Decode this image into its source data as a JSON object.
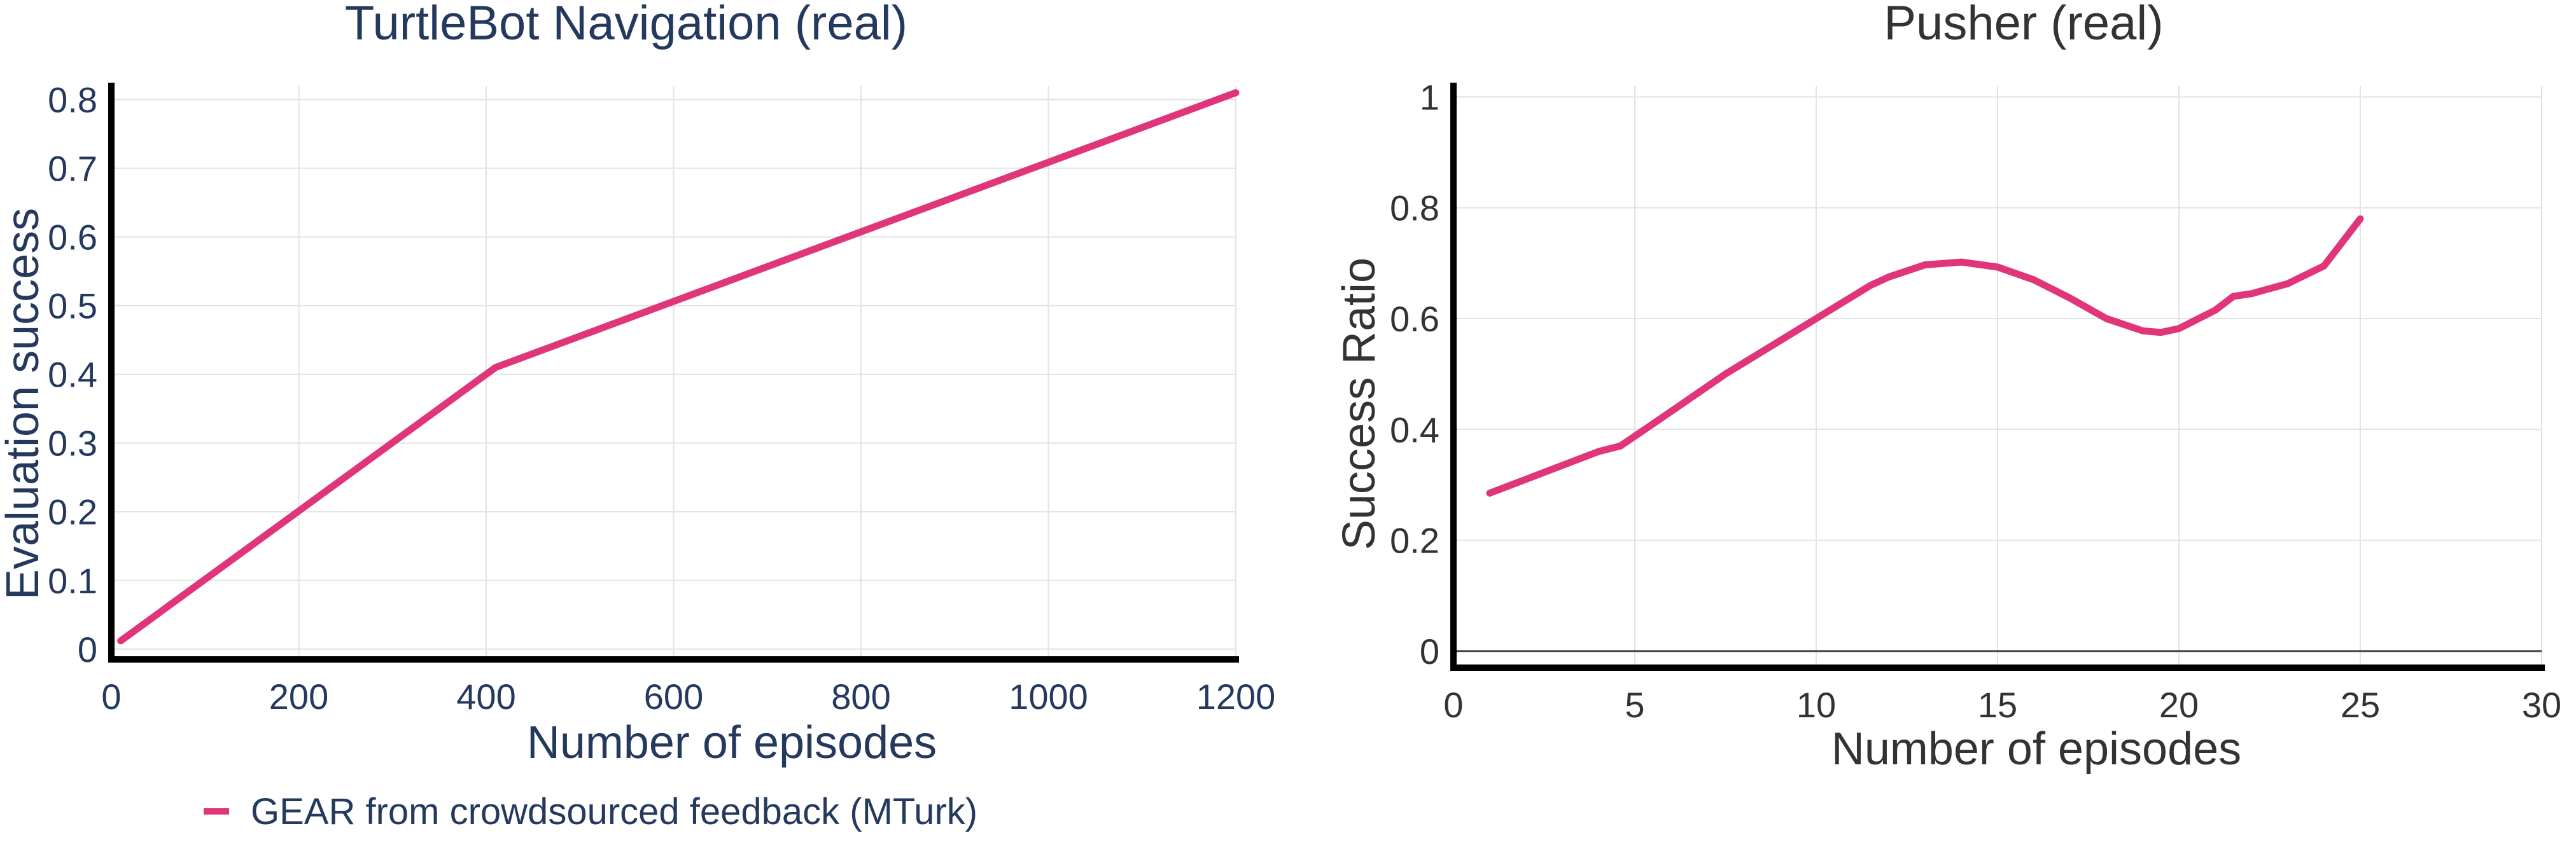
{
  "colors": {
    "series": "#e0357a",
    "left_text": "#25395f",
    "right_text": "#333333"
  },
  "legend": {
    "label": "GEAR from crowdsourced feedback (MTurk)"
  },
  "chart_data": [
    {
      "type": "line",
      "title": "TurtleBot Navigation (real)",
      "xlabel": "Number of episodes",
      "ylabel": "Evaluation success",
      "xlim": [
        0,
        1200
      ],
      "ylim": [
        -0.015,
        0.82
      ],
      "xticks": [
        0,
        200,
        400,
        600,
        800,
        1000,
        1200
      ],
      "xtick_labels": [
        "0",
        "200",
        "400",
        "600",
        "800",
        "1000",
        "1200"
      ],
      "yticks": [
        0,
        0.1,
        0.2,
        0.3,
        0.4,
        0.5,
        0.6,
        0.7,
        0.8
      ],
      "ytick_labels": [
        "0",
        "0.1",
        "0.2",
        "0.3",
        "0.4",
        "0.5",
        "0.6",
        "0.7",
        "0.8"
      ],
      "grid": true,
      "series": [
        {
          "name": "GEAR from crowdsourced feedback (MTurk)",
          "x": [
            10,
            410,
            1200
          ],
          "y": [
            0.012,
            0.41,
            0.81
          ]
        }
      ]
    },
    {
      "type": "line",
      "title": "Pusher (real)",
      "xlabel": "Number of episodes",
      "ylabel": "Success Ratio",
      "xlim": [
        0,
        30
      ],
      "ylim": [
        -0.03,
        1.02
      ],
      "xticks": [
        0,
        5,
        10,
        15,
        20,
        25,
        30
      ],
      "xtick_labels": [
        "0",
        "5",
        "10",
        "15",
        "20",
        "25",
        "30"
      ],
      "yticks": [
        0,
        0.2,
        0.4,
        0.6,
        0.8,
        1
      ],
      "ytick_labels": [
        "0",
        "0.2",
        "0.4",
        "0.6",
        "0.8",
        "1"
      ],
      "grid": true,
      "series": [
        {
          "name": "GEAR from crowdsourced feedback (MTurk)",
          "x": [
            1,
            2,
            3,
            4,
            4.6,
            5.5,
            6.5,
            7.5,
            8.5,
            9.5,
            10.5,
            11.5,
            12,
            13,
            14,
            15,
            16,
            17,
            18,
            19,
            19.5,
            20,
            21,
            21.5,
            22,
            23,
            24,
            25
          ],
          "y": [
            0.285,
            0.31,
            0.335,
            0.36,
            0.37,
            0.41,
            0.455,
            0.5,
            0.54,
            0.58,
            0.62,
            0.66,
            0.675,
            0.697,
            0.702,
            0.693,
            0.67,
            0.637,
            0.6,
            0.578,
            0.575,
            0.582,
            0.615,
            0.64,
            0.645,
            0.663,
            0.695,
            0.78
          ]
        }
      ]
    }
  ]
}
